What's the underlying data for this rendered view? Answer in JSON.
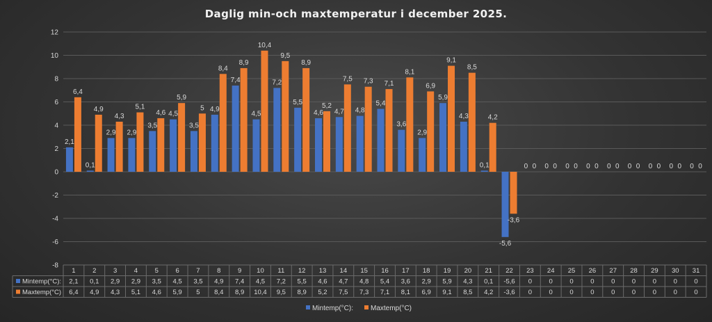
{
  "chart_data": {
    "type": "bar",
    "title": "Daglig min-och maxtemperatur i december 2025.",
    "categories": [
      "1",
      "2",
      "3",
      "4",
      "5",
      "6",
      "7",
      "8",
      "9",
      "10",
      "11",
      "12",
      "13",
      "14",
      "15",
      "16",
      "17",
      "18",
      "19",
      "20",
      "21",
      "22",
      "23",
      "24",
      "25",
      "26",
      "27",
      "28",
      "29",
      "30",
      "31"
    ],
    "series": [
      {
        "name": "Mintemp(°C):",
        "color": "#4472c4",
        "values": [
          2.1,
          0.1,
          2.9,
          2.9,
          3.5,
          4.5,
          3.5,
          4.9,
          7.4,
          4.5,
          7.2,
          5.5,
          4.6,
          4.7,
          4.8,
          5.4,
          3.6,
          2.9,
          5.9,
          4.3,
          0.1,
          -5.6,
          0,
          0,
          0,
          0,
          0,
          0,
          0,
          0,
          0
        ],
        "labels": [
          "2,1",
          "0,1",
          "2,9",
          "2,9",
          "3,5",
          "4,5",
          "3,5",
          "4,9",
          "7,4",
          "4,5",
          "7,2",
          "5,5",
          "4,6",
          "4,7",
          "4,8",
          "5,4",
          "3,6",
          "2,9",
          "5,9",
          "4,3",
          "0,1",
          "-5,6",
          "0",
          "0",
          "0",
          "0",
          "0",
          "0",
          "0",
          "0",
          "0"
        ]
      },
      {
        "name": "Maxtemp(°C)",
        "color": "#ed7d31",
        "values": [
          6.4,
          4.9,
          4.3,
          5.1,
          4.6,
          5.9,
          5,
          8.4,
          8.9,
          10.4,
          9.5,
          8.9,
          5.2,
          7.5,
          7.3,
          7.1,
          8.1,
          6.9,
          9.1,
          8.5,
          4.2,
          -3.6,
          0,
          0,
          0,
          0,
          0,
          0,
          0,
          0,
          0
        ],
        "labels": [
          "6,4",
          "4,9",
          "4,3",
          "5,1",
          "4,6",
          "5,9",
          "5",
          "8,4",
          "8,9",
          "10,4",
          "9,5",
          "8,9",
          "5,2",
          "7,5",
          "7,3",
          "7,1",
          "8,1",
          "6,9",
          "9,1",
          "8,5",
          "4,2",
          "-3,6",
          "0",
          "0",
          "0",
          "0",
          "0",
          "0",
          "0",
          "0",
          "0"
        ]
      }
    ],
    "table_series_labels": [
      "Mintemp(°C):",
      "Maxtemp(°C)"
    ],
    "legend": [
      "Mintemp(°C):",
      "Maxtemp(°C)"
    ],
    "legend_position": "bottom",
    "ylim": [
      -8,
      12
    ],
    "yticks": [
      12,
      10,
      8,
      6,
      4,
      2,
      0,
      -2,
      -4,
      -6,
      -8
    ],
    "grid": true,
    "data_table": true
  }
}
